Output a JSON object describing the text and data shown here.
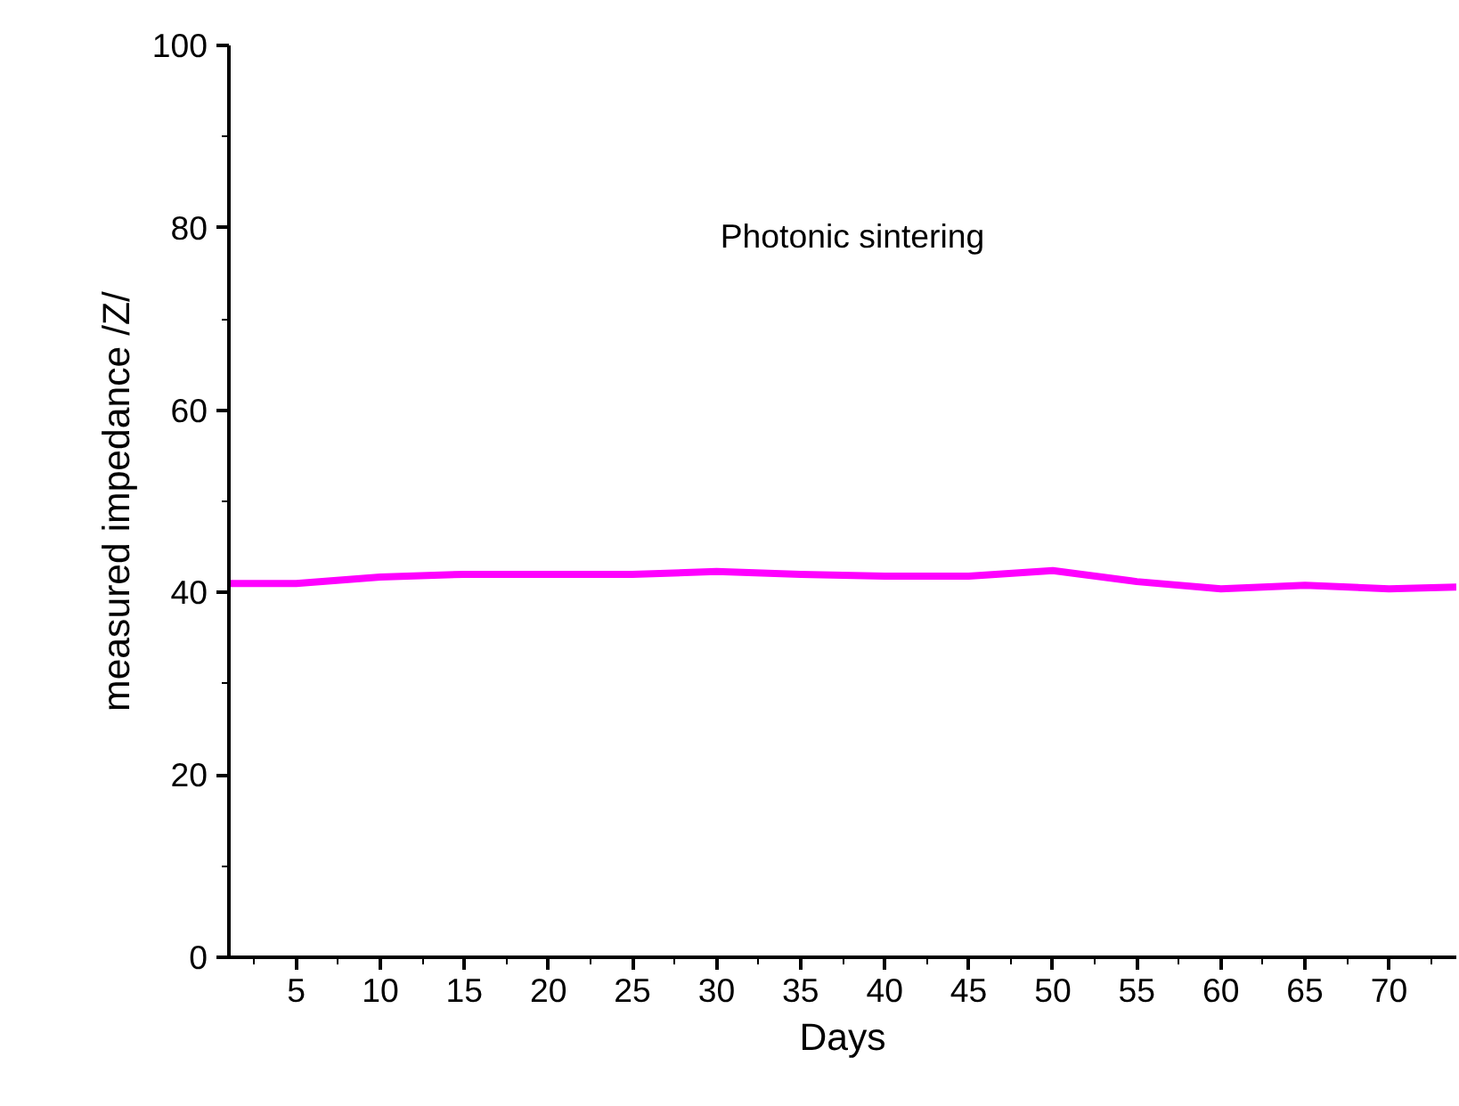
{
  "chart_data": {
    "type": "line",
    "xlabel": "Days",
    "ylabel": "measured impedance /Z/",
    "annotations": [
      "Photonic sintering"
    ],
    "x": [
      1,
      5,
      10,
      15,
      20,
      25,
      30,
      35,
      40,
      45,
      50,
      55,
      60,
      65,
      70,
      74
    ],
    "series": [
      {
        "color": "#ff00ff",
        "values": [
          41,
          41,
          41.7,
          42,
          42,
          42,
          42.3,
          42,
          41.8,
          41.8,
          42.4,
          41.2,
          40.4,
          40.8,
          40.4,
          40.6
        ]
      }
    ],
    "xlim": [
      1,
      74
    ],
    "xticks": [
      5,
      10,
      15,
      20,
      25,
      30,
      35,
      40,
      45,
      50,
      55,
      60,
      65,
      70
    ],
    "ylim": [
      0,
      100
    ],
    "yticks": [
      0,
      20,
      40,
      60,
      80,
      100
    ],
    "grid": false,
    "marker": "none",
    "line_style": "solid"
  }
}
